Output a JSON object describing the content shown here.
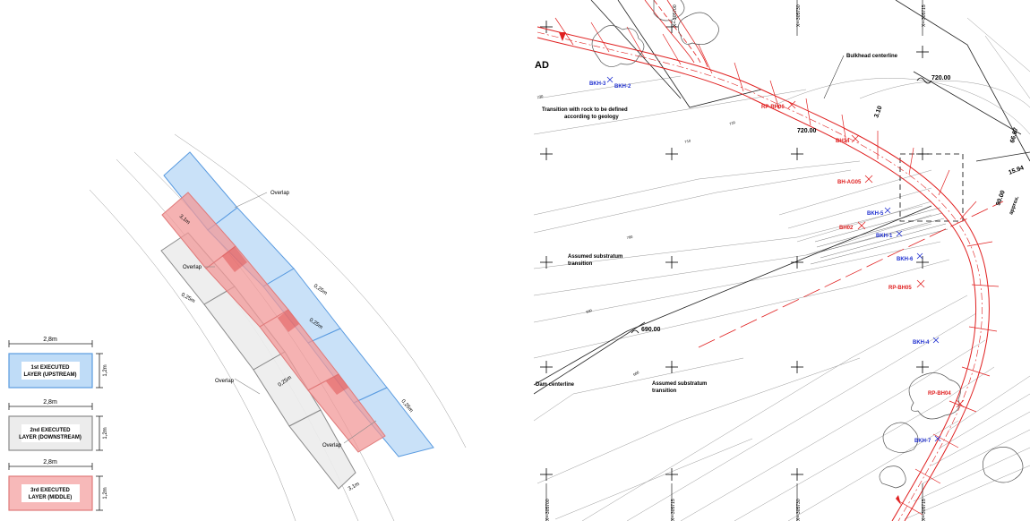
{
  "legend": {
    "width_label": "2,8m",
    "height_label": "1,2m",
    "layers": [
      {
        "line1": "1st EXECUTED",
        "line2": "LAYER (UPSTREAM)",
        "fill": "#bfdcf7",
        "stroke": "#5a9be0"
      },
      {
        "line1": "2nd EXECUTED",
        "line2": "LAYER (DOWNSTREAM)",
        "fill": "#ececec",
        "stroke": "#8a8a8a"
      },
      {
        "line1": "3rd EXECUTED",
        "line2": "LAYER (MIDDLE)",
        "fill": "#f7b9b9",
        "stroke": "#e07a7a"
      }
    ]
  },
  "layer_diagram": {
    "labels": {
      "overlap": "Overlap",
      "spacing": "0,25m",
      "width_top": "3,1m",
      "width_bottom": "3,1m"
    }
  },
  "plan": {
    "label_ad": "AD",
    "dam_centerline": "Dam centerline",
    "bulkhead_centerline": "Bulkhead centerline",
    "transition_rock": [
      "Transition with rock to be defined",
      "according to geology"
    ],
    "assumed_transition": [
      "Assumed substratum",
      "transition"
    ],
    "elev_720": "720.00",
    "elev_720b": "720.00",
    "elev_690": "690.00",
    "dim_310": "3.10",
    "dim_1594": "15.94",
    "dim_9000": "90.00",
    "dim_6667": "66.67",
    "spcl": "approx.",
    "contours": [
      "700",
      "710",
      "720",
      "730",
      "690",
      "680"
    ],
    "coords_top": [
      "X=-305730",
      "X=-305715",
      "X=-305700"
    ],
    "coords_bottom": [
      "X=-305700",
      "X=-305715",
      "X=-305730",
      "X=-305715"
    ],
    "boreholes_red": [
      "RP-BH06",
      "BH34",
      "BH-AG05",
      "BH02",
      "RP-BH05",
      "RP-BH04"
    ],
    "boreholes_blue": [
      "BKH-3",
      "BKH-2",
      "BKH-5",
      "BKH-1",
      "BKH-6",
      "BKH-4",
      "BKH-7"
    ]
  },
  "colors": {
    "upstream": "#5a9be0",
    "middle": "#e05555",
    "downstream": "#8a8a8a",
    "borehole_red": "#e02020",
    "borehole_blue": "#2030d0"
  }
}
